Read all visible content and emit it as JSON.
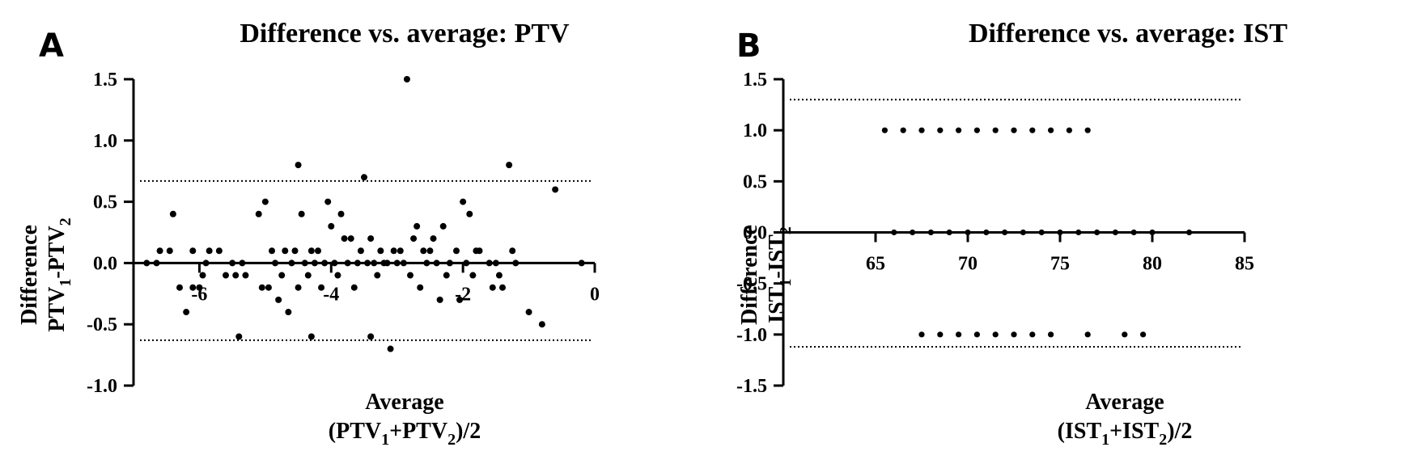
{
  "chart_data": [
    {
      "panel": "A",
      "type": "scatter",
      "title": "Difference vs. average: PTV",
      "ylabel": [
        "Difference",
        "PTV",
        "1",
        "-PTV",
        "2"
      ],
      "xlabel": [
        "Average",
        "(PTV",
        "1",
        "+PTV",
        "2",
        ")/2"
      ],
      "xlim": [
        -7,
        0
      ],
      "ylim": [
        -1.0,
        1.5
      ],
      "xticks": [
        -6,
        -4,
        -2,
        0
      ],
      "xtick_labels": [
        "-6",
        "-4",
        "-2",
        "0"
      ],
      "yticks": [
        -1.0,
        -0.5,
        0.0,
        0.5,
        1.0,
        1.5
      ],
      "ytick_labels": [
        "-1.0",
        "-0.5",
        "0.0",
        "0.5",
        "1.0",
        "1.5"
      ],
      "upper_loa": 0.67,
      "lower_loa": -0.63,
      "points": [
        [
          -6.8,
          0.0
        ],
        [
          -6.65,
          0.0
        ],
        [
          -6.6,
          0.1
        ],
        [
          -6.45,
          0.1
        ],
        [
          -6.4,
          0.4
        ],
        [
          -6.3,
          -0.2
        ],
        [
          -6.2,
          -0.4
        ],
        [
          -6.1,
          -0.2
        ],
        [
          -6.1,
          0.1
        ],
        [
          -6.0,
          -0.2
        ],
        [
          -5.95,
          -0.1
        ],
        [
          -5.9,
          0.0
        ],
        [
          -5.85,
          0.1
        ],
        [
          -5.7,
          0.1
        ],
        [
          -5.6,
          -0.1
        ],
        [
          -5.5,
          0.0
        ],
        [
          -5.45,
          -0.1
        ],
        [
          -5.4,
          -0.6
        ],
        [
          -5.35,
          0.0
        ],
        [
          -5.3,
          -0.1
        ],
        [
          -5.1,
          0.4
        ],
        [
          -5.05,
          -0.2
        ],
        [
          -5.0,
          0.5
        ],
        [
          -4.95,
          -0.2
        ],
        [
          -4.9,
          0.1
        ],
        [
          -4.85,
          0.0
        ],
        [
          -4.8,
          -0.3
        ],
        [
          -4.75,
          -0.1
        ],
        [
          -4.7,
          0.1
        ],
        [
          -4.65,
          -0.4
        ],
        [
          -4.6,
          0.0
        ],
        [
          -4.55,
          0.1
        ],
        [
          -4.5,
          0.8
        ],
        [
          -4.5,
          -0.2
        ],
        [
          -4.45,
          0.4
        ],
        [
          -4.4,
          0.0
        ],
        [
          -4.35,
          -0.1
        ],
        [
          -4.3,
          0.1
        ],
        [
          -4.3,
          -0.6
        ],
        [
          -4.25,
          0.0
        ],
        [
          -4.2,
          0.1
        ],
        [
          -4.15,
          -0.2
        ],
        [
          -4.1,
          0.0
        ],
        [
          -4.05,
          0.5
        ],
        [
          -4.0,
          0.3
        ],
        [
          -3.95,
          0.0
        ],
        [
          -3.9,
          -0.1
        ],
        [
          -3.85,
          0.4
        ],
        [
          -3.8,
          0.2
        ],
        [
          -3.75,
          0.0
        ],
        [
          -3.7,
          0.2
        ],
        [
          -3.65,
          -0.2
        ],
        [
          -3.6,
          0.0
        ],
        [
          -3.55,
          0.1
        ],
        [
          -3.5,
          0.7
        ],
        [
          -3.45,
          0.0
        ],
        [
          -3.4,
          -0.6
        ],
        [
          -3.4,
          0.2
        ],
        [
          -3.35,
          0.0
        ],
        [
          -3.3,
          -0.1
        ],
        [
          -3.25,
          0.1
        ],
        [
          -3.2,
          0.0
        ],
        [
          -3.15,
          0.0
        ],
        [
          -3.1,
          -0.7
        ],
        [
          -3.05,
          0.1
        ],
        [
          -3.0,
          0.0
        ],
        [
          -2.95,
          0.1
        ],
        [
          -2.9,
          0.0
        ],
        [
          -2.85,
          1.5
        ],
        [
          -2.8,
          -0.1
        ],
        [
          -2.75,
          0.2
        ],
        [
          -2.7,
          0.3
        ],
        [
          -2.65,
          -0.2
        ],
        [
          -2.6,
          0.1
        ],
        [
          -2.55,
          0.0
        ],
        [
          -2.5,
          0.1
        ],
        [
          -2.45,
          0.2
        ],
        [
          -2.4,
          0.0
        ],
        [
          -2.35,
          -0.3
        ],
        [
          -2.3,
          0.3
        ],
        [
          -2.25,
          -0.1
        ],
        [
          -2.2,
          0.0
        ],
        [
          -2.1,
          0.1
        ],
        [
          -2.05,
          -0.3
        ],
        [
          -2.0,
          0.5
        ],
        [
          -1.95,
          0.0
        ],
        [
          -1.9,
          0.4
        ],
        [
          -1.85,
          -0.1
        ],
        [
          -1.8,
          0.1
        ],
        [
          -1.75,
          0.1
        ],
        [
          -1.6,
          0.0
        ],
        [
          -1.55,
          -0.2
        ],
        [
          -1.5,
          0.0
        ],
        [
          -1.45,
          -0.1
        ],
        [
          -1.4,
          -0.2
        ],
        [
          -1.3,
          0.8
        ],
        [
          -1.25,
          0.1
        ],
        [
          -1.2,
          0.0
        ],
        [
          -1.0,
          -0.4
        ],
        [
          -0.8,
          -0.5
        ],
        [
          -0.6,
          0.6
        ],
        [
          -0.2,
          0.0
        ]
      ]
    },
    {
      "panel": "B",
      "type": "scatter",
      "title": "Difference vs. average: IST",
      "ylabel": [
        "Difference",
        "IST",
        "1",
        "-IST",
        "2"
      ],
      "xlabel": [
        "Average",
        "(IST",
        "1",
        "+IST",
        "2",
        ")/2"
      ],
      "xlim": [
        60,
        85
      ],
      "ylim": [
        -1.5,
        1.5
      ],
      "xticks": [
        65,
        70,
        75,
        80,
        85
      ],
      "xtick_labels": [
        "65",
        "70",
        "75",
        "80",
        "85"
      ],
      "yticks": [
        -1.5,
        -1.0,
        -0.5,
        0.0,
        0.5,
        1.0,
        1.5
      ],
      "ytick_labels": [
        "-1.5",
        "-1.0",
        "-0.5",
        "0.0",
        "0.5",
        "1.0",
        "1.5"
      ],
      "upper_loa": 1.3,
      "lower_loa": -1.12,
      "points": [
        [
          65.5,
          1
        ],
        [
          66.5,
          1
        ],
        [
          67.5,
          1
        ],
        [
          68.5,
          1
        ],
        [
          69.5,
          1
        ],
        [
          70.5,
          1
        ],
        [
          71.5,
          1
        ],
        [
          72.5,
          1
        ],
        [
          73.5,
          1
        ],
        [
          74.5,
          1
        ],
        [
          75.5,
          1
        ],
        [
          76.5,
          1
        ],
        [
          66,
          0
        ],
        [
          67,
          0
        ],
        [
          68,
          0
        ],
        [
          69,
          0
        ],
        [
          70,
          0
        ],
        [
          71,
          0
        ],
        [
          72,
          0
        ],
        [
          73,
          0
        ],
        [
          74,
          0
        ],
        [
          75,
          0
        ],
        [
          76,
          0
        ],
        [
          77,
          0
        ],
        [
          78,
          0
        ],
        [
          79,
          0
        ],
        [
          80,
          0
        ],
        [
          82,
          0
        ],
        [
          67.5,
          -1
        ],
        [
          68.5,
          -1
        ],
        [
          69.5,
          -1
        ],
        [
          70.5,
          -1
        ],
        [
          71.5,
          -1
        ],
        [
          72.5,
          -1
        ],
        [
          73.5,
          -1
        ],
        [
          74.5,
          -1
        ],
        [
          76.5,
          -1
        ],
        [
          78.5,
          -1
        ],
        [
          79.5,
          -1
        ]
      ]
    }
  ]
}
